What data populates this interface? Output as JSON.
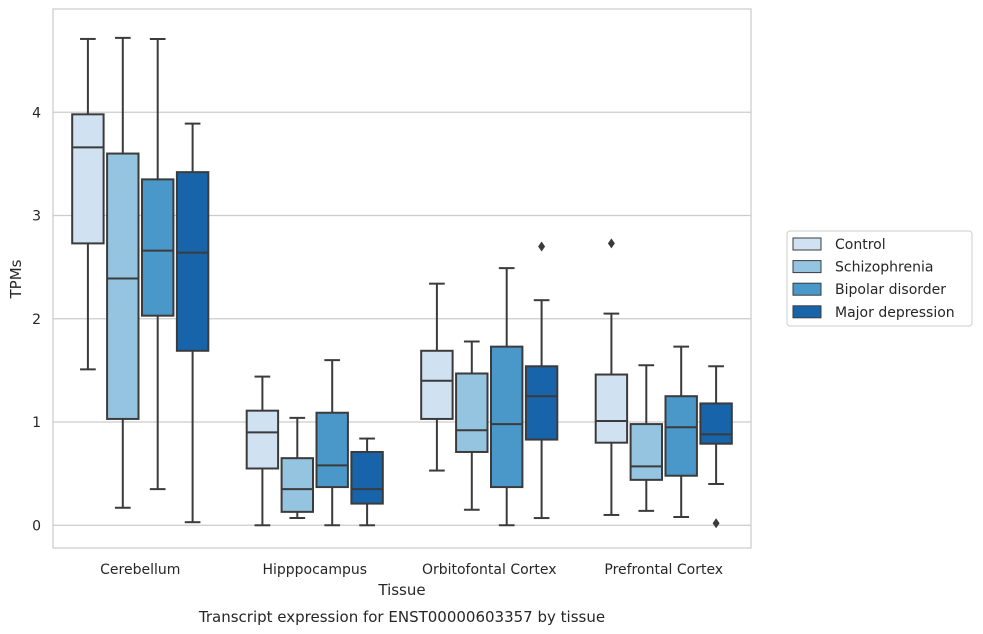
{
  "caption": "Transcript expression for ENST00000603357 by tissue",
  "chart_data": {
    "type": "boxplot",
    "xlabel": "Tissue",
    "ylabel": "TPMs",
    "ylim": [
      -0.22,
      5.0
    ],
    "yticks": [
      "0",
      "1",
      "2",
      "3",
      "4"
    ],
    "grid": "horizontal",
    "legend_position": "right",
    "categories": [
      "Cerebellum",
      "Hipppocampus",
      "Orbitofontal Cortex",
      "Prefrontal Cortex"
    ],
    "series": [
      {
        "name": "Control",
        "color": "#d0e1f2",
        "boxes": [
          {
            "whislo": 1.51,
            "q1": 2.73,
            "med": 3.66,
            "q3": 3.98,
            "whishi": 4.71,
            "fliers": []
          },
          {
            "whislo": 0.0,
            "q1": 0.55,
            "med": 0.9,
            "q3": 1.11,
            "whishi": 1.44,
            "fliers": []
          },
          {
            "whislo": 0.53,
            "q1": 1.03,
            "med": 1.4,
            "q3": 1.69,
            "whishi": 2.34,
            "fliers": []
          },
          {
            "whislo": 0.1,
            "q1": 0.8,
            "med": 1.01,
            "q3": 1.46,
            "whishi": 2.05,
            "fliers": [
              2.73
            ]
          }
        ]
      },
      {
        "name": "Schizophrenia",
        "color": "#94c4df",
        "boxes": [
          {
            "whislo": 0.17,
            "q1": 1.03,
            "med": 2.39,
            "q3": 3.6,
            "whishi": 4.72,
            "fliers": []
          },
          {
            "whislo": 0.07,
            "q1": 0.13,
            "med": 0.35,
            "q3": 0.65,
            "whishi": 1.04,
            "fliers": []
          },
          {
            "whislo": 0.15,
            "q1": 0.71,
            "med": 0.92,
            "q3": 1.47,
            "whishi": 1.78,
            "fliers": []
          },
          {
            "whislo": 0.14,
            "q1": 0.44,
            "med": 0.57,
            "q3": 0.98,
            "whishi": 1.55,
            "fliers": []
          }
        ]
      },
      {
        "name": "Bipolar disorder",
        "color": "#4a98c9",
        "boxes": [
          {
            "whislo": 0.35,
            "q1": 2.03,
            "med": 2.66,
            "q3": 3.35,
            "whishi": 4.71,
            "fliers": []
          },
          {
            "whislo": 0.0,
            "q1": 0.37,
            "med": 0.58,
            "q3": 1.09,
            "whishi": 1.6,
            "fliers": []
          },
          {
            "whislo": 0.0,
            "q1": 0.37,
            "med": 0.98,
            "q3": 1.73,
            "whishi": 2.49,
            "fliers": []
          },
          {
            "whislo": 0.08,
            "q1": 0.48,
            "med": 0.95,
            "q3": 1.25,
            "whishi": 1.73,
            "fliers": []
          }
        ]
      },
      {
        "name": "Major depression",
        "color": "#1764ab",
        "boxes": [
          {
            "whislo": 0.03,
            "q1": 1.69,
            "med": 2.64,
            "q3": 3.42,
            "whishi": 3.89,
            "fliers": []
          },
          {
            "whislo": 0.0,
            "q1": 0.21,
            "med": 0.35,
            "q3": 0.71,
            "whishi": 0.84,
            "fliers": []
          },
          {
            "whislo": 0.07,
            "q1": 0.83,
            "med": 1.25,
            "q3": 1.54,
            "whishi": 2.18,
            "fliers": [
              2.7
            ]
          },
          {
            "whislo": 0.4,
            "q1": 0.79,
            "med": 0.88,
            "q3": 1.18,
            "whishi": 1.54,
            "fliers": [
              0.02
            ]
          }
        ]
      }
    ]
  }
}
